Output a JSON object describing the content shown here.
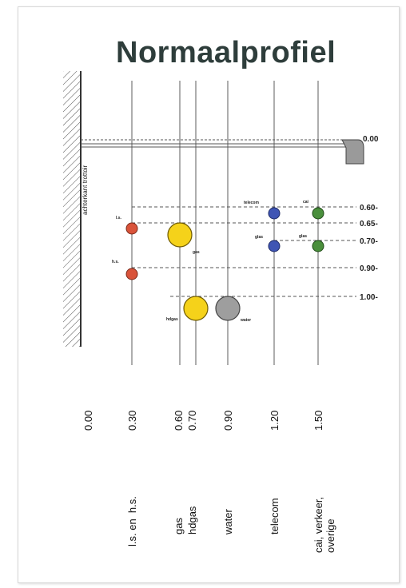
{
  "title": "Normaalprofiel",
  "wall_label": "achterkant trottoir",
  "depths": [
    "0.00",
    "0.60-",
    "0.65-",
    "0.70-",
    "0.90-",
    "1.00-"
  ],
  "offsets": [
    "0.00",
    "0.30",
    "0.60\n0.70",
    "0.90",
    "1.20",
    "1.50"
  ],
  "categories": [
    "l.s. en  h.s.",
    "gas\nhdgas",
    "water",
    "telecom",
    "cai, verkeer,\noverige"
  ],
  "cable_labels": {
    "ls": "l.s.",
    "hs": "h.s.",
    "gas_small": "gas",
    "hdgas": "hdgas",
    "water": "water",
    "telecom": "telecom",
    "cai": "cai",
    "glas1": "glas",
    "glas2": "glas"
  },
  "colors": {
    "electric": "#d9533a",
    "gas": "#f5d21a",
    "water": "#9e9e9e",
    "telecom": "#3f55b4",
    "cai": "#4a8f3c",
    "ink": "#444444"
  }
}
